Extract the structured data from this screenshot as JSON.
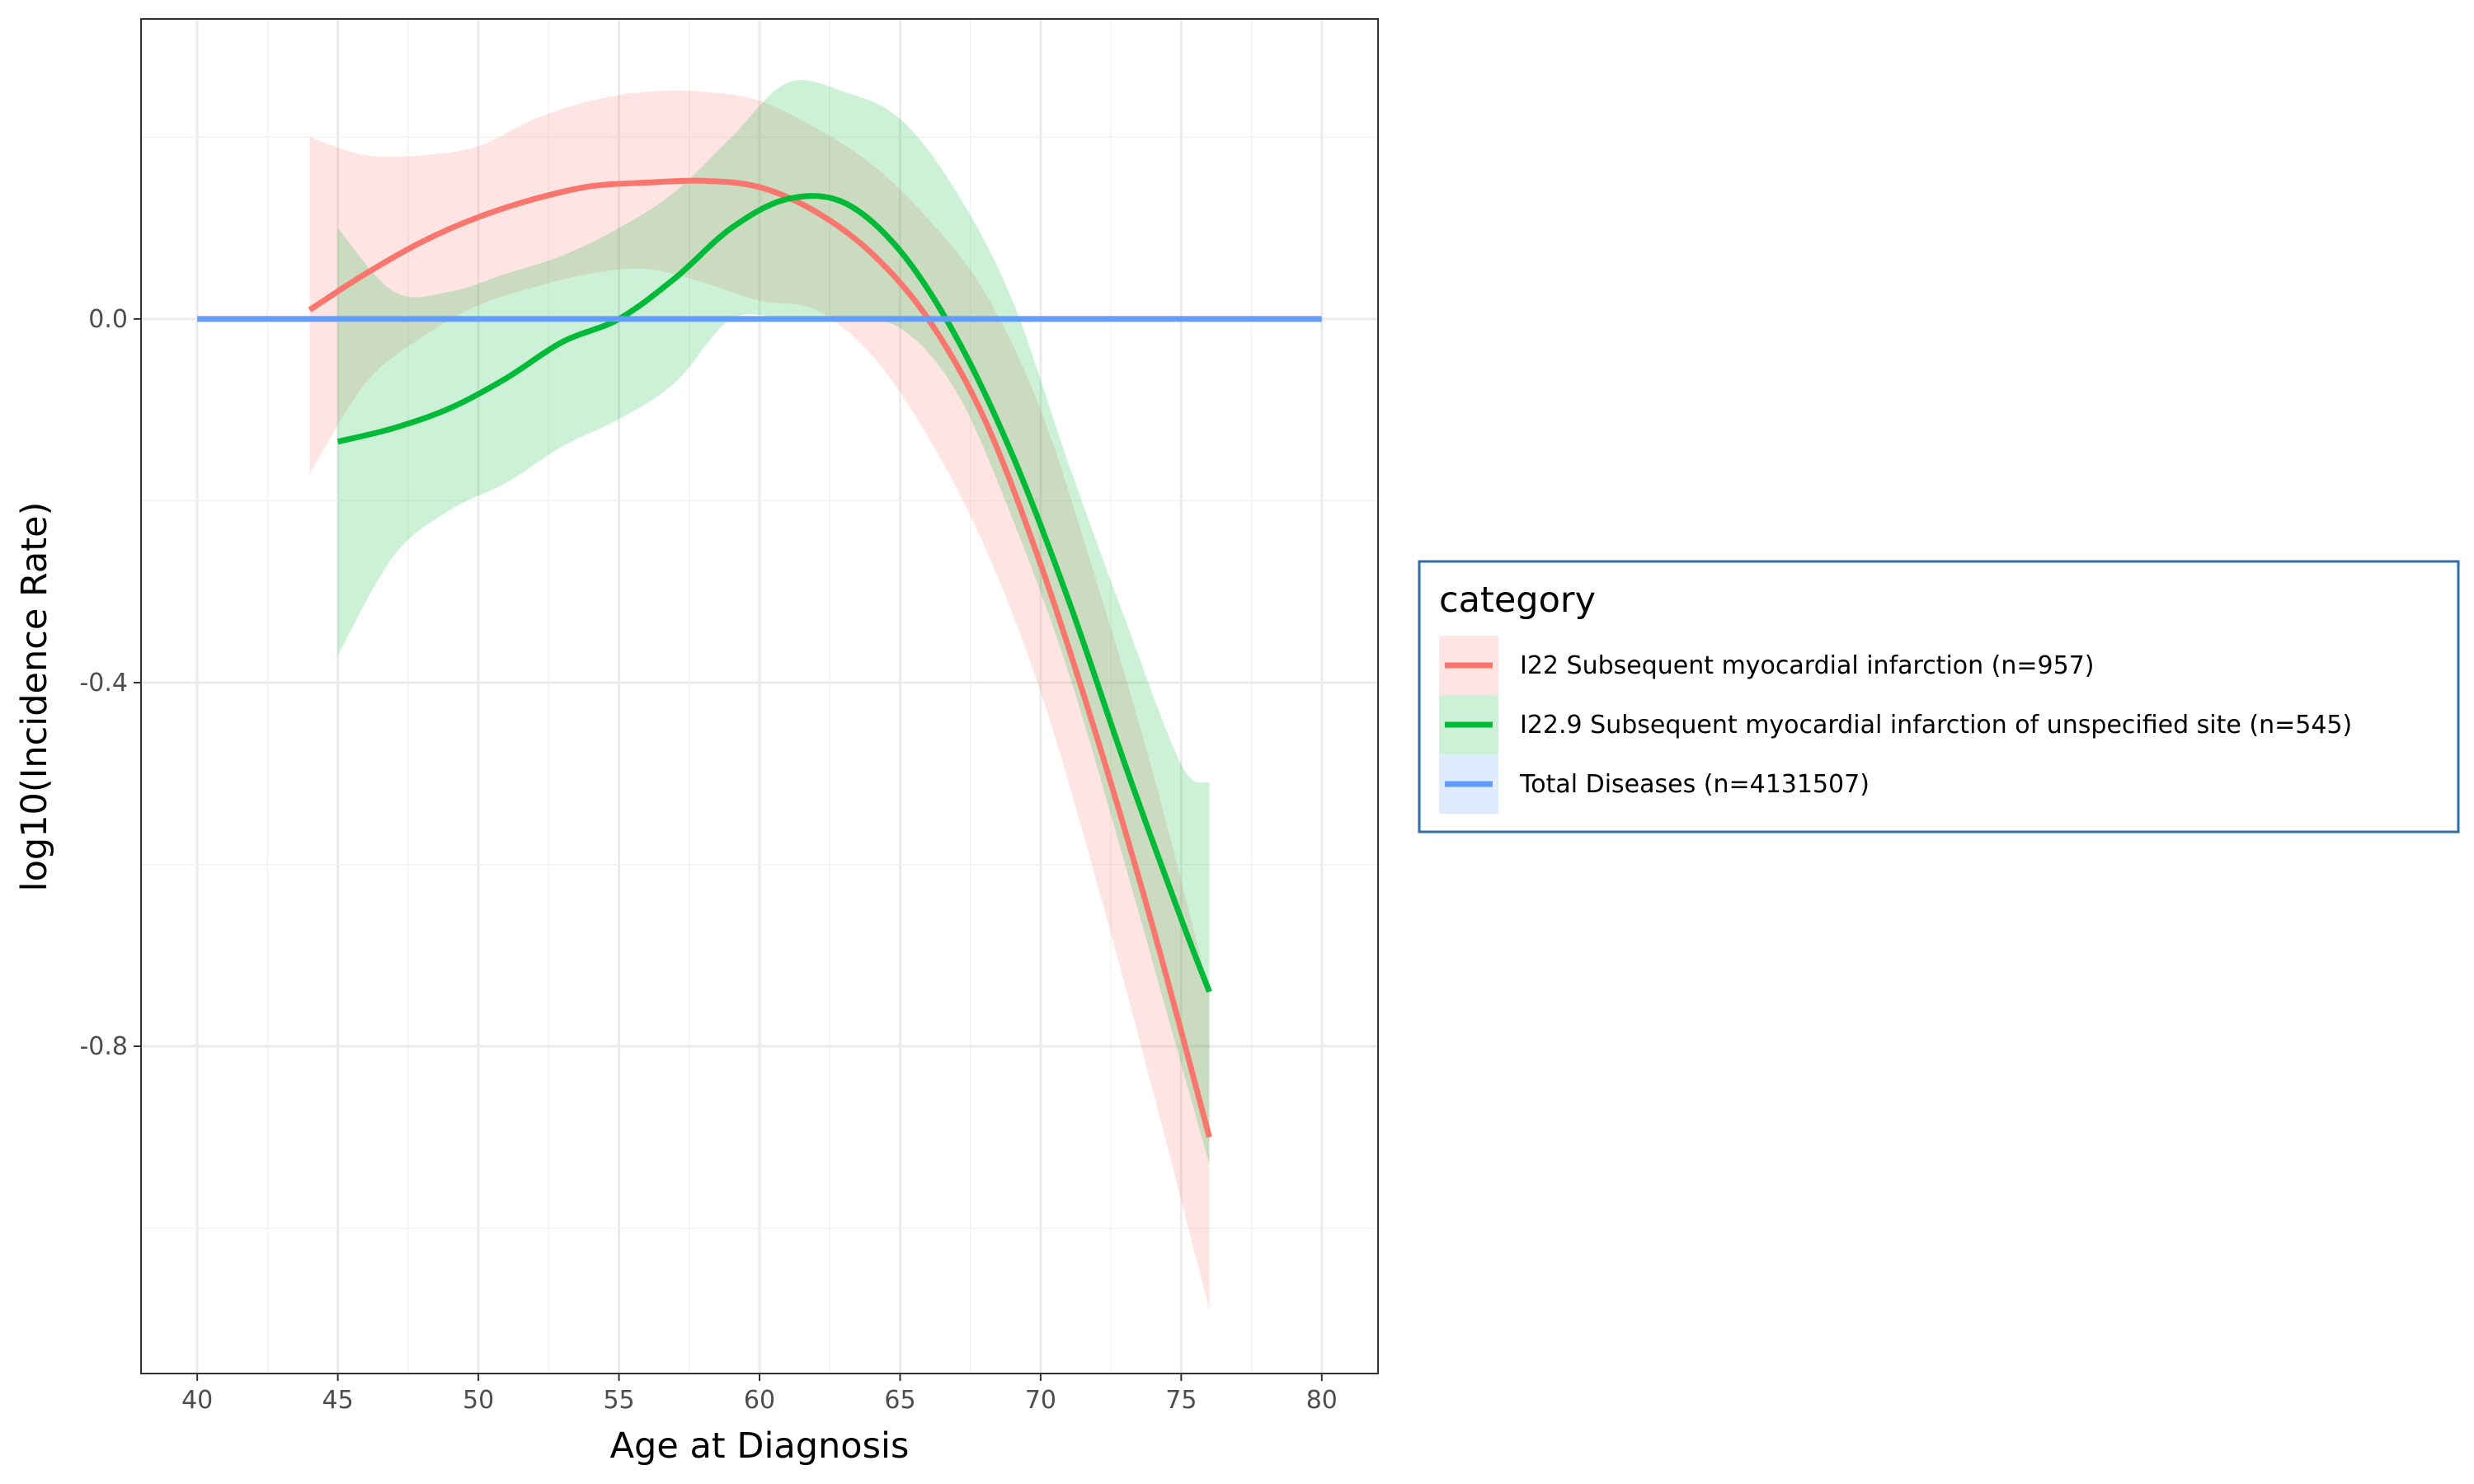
{
  "chart_data": {
    "type": "line",
    "title": "",
    "xlabel": "Age at Diagnosis",
    "ylabel": "log10(Incidence Rate)",
    "xlim": [
      38,
      82
    ],
    "ylim": [
      -1.16,
      0.33
    ],
    "x_ticks": [
      40,
      45,
      50,
      55,
      60,
      65,
      70,
      75,
      80
    ],
    "x_tick_labels": [
      "40",
      "45",
      "50",
      "55",
      "60",
      "65",
      "70",
      "75",
      "80"
    ],
    "y_ticks": [
      0.0,
      -0.4,
      -0.8
    ],
    "y_tick_labels": [
      "0.0",
      "-0.4",
      "-0.8"
    ],
    "grid": true,
    "legend_title": "category",
    "legend_position": "right",
    "series": [
      {
        "name": "I22 Subsequent myocardial infarction (n=957)",
        "color": "#F8766D",
        "x": [
          44,
          46,
          48,
          50,
          52,
          54,
          56,
          58,
          60,
          62,
          64,
          66,
          68,
          70,
          72,
          74,
          76
        ],
        "values": [
          0.01,
          0.05,
          0.085,
          0.112,
          0.132,
          0.146,
          0.15,
          0.152,
          0.145,
          0.118,
          0.072,
          0.0,
          -0.11,
          -0.27,
          -0.46,
          -0.67,
          -0.9
        ],
        "lower": [
          -0.17,
          -0.07,
          -0.02,
          0.015,
          0.035,
          0.05,
          0.055,
          0.04,
          0.02,
          0.01,
          -0.04,
          -0.13,
          -0.25,
          -0.41,
          -0.62,
          -0.85,
          -1.09
        ],
        "upper": [
          0.2,
          0.18,
          0.18,
          0.19,
          0.22,
          0.24,
          0.25,
          0.25,
          0.24,
          0.21,
          0.17,
          0.11,
          0.03,
          -0.1,
          -0.29,
          -0.5,
          -0.74
        ]
      },
      {
        "name": "I22.9 Subsequent myocardial infarction of unspecified site (n=545)",
        "color": "#00BA38",
        "x": [
          45,
          47,
          49,
          51,
          53,
          55,
          57,
          59,
          61,
          63,
          65,
          67,
          69,
          71,
          73,
          75,
          76
        ],
        "values": [
          -0.135,
          -0.12,
          -0.098,
          -0.065,
          -0.025,
          0.0,
          0.045,
          0.1,
          0.132,
          0.128,
          0.075,
          -0.02,
          -0.15,
          -0.31,
          -0.49,
          -0.66,
          -0.74
        ],
        "lower": [
          -0.37,
          -0.26,
          -0.21,
          -0.18,
          -0.14,
          -0.11,
          -0.07,
          0.0,
          0.0,
          0.0,
          -0.01,
          -0.08,
          -0.22,
          -0.39,
          -0.6,
          -0.82,
          -0.93
        ],
        "upper": [
          0.1,
          0.03,
          0.03,
          0.05,
          0.07,
          0.1,
          0.14,
          0.2,
          0.26,
          0.25,
          0.22,
          0.14,
          0.02,
          -0.16,
          -0.33,
          -0.49,
          -0.51
        ]
      },
      {
        "name": "Total Diseases (n=4131507)",
        "color": "#619CFF",
        "x": [
          40,
          80
        ],
        "values": [
          0.0,
          0.0
        ]
      }
    ]
  }
}
